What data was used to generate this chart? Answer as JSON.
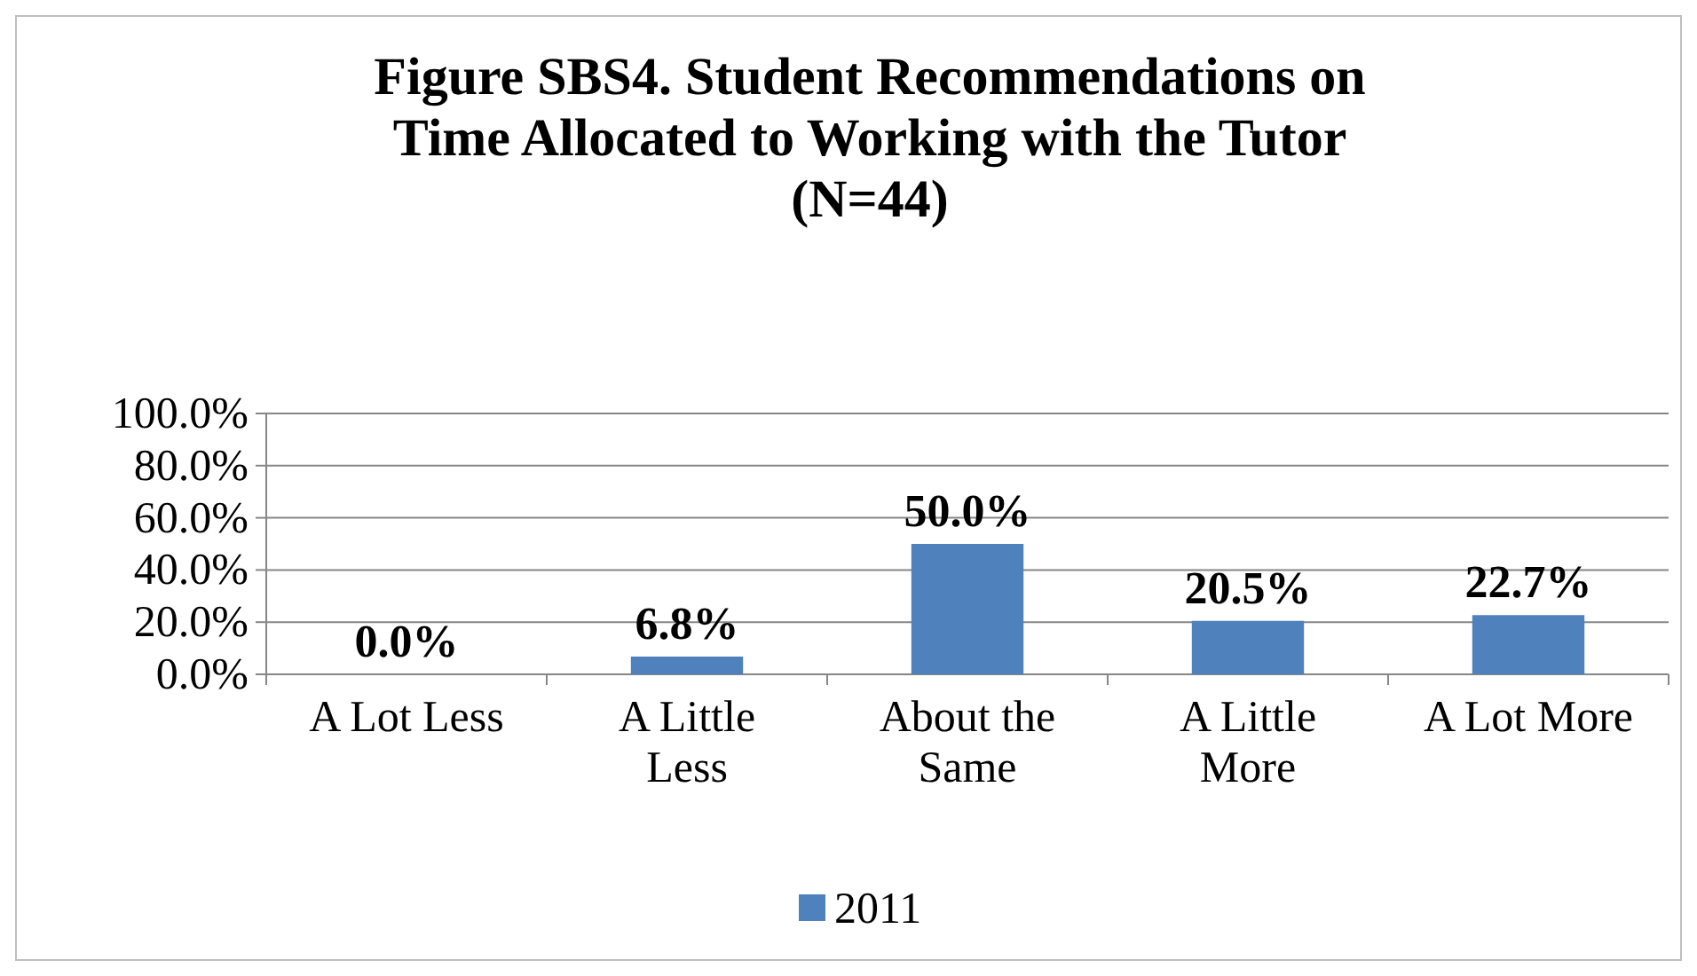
{
  "chart_data": {
    "type": "bar",
    "title": "Figure SBS4. Student Recommendations on Time Allocated to Working with the Tutor (N=44)",
    "categories": [
      "A Lot Less",
      "A Little Less",
      "About the Same",
      "A Little More",
      "A Lot More"
    ],
    "series": [
      {
        "name": "2011",
        "color": "#4f81bd",
        "values": [
          0,
          6.8,
          50,
          20.5,
          22.7
        ],
        "value_labels": [
          "0.0%",
          "6.8%",
          "50.0%",
          "20.5%",
          "22.7%"
        ]
      }
    ],
    "ylim": [
      0,
      100
    ],
    "yticks": [
      {
        "value": 0,
        "label": "0.0%"
      },
      {
        "value": 20,
        "label": "20.0%"
      },
      {
        "value": 40,
        "label": "40.0%"
      },
      {
        "value": 60,
        "label": "60.0%"
      },
      {
        "value": 80,
        "label": "80.0%"
      },
      {
        "value": 100,
        "label": "100.0%"
      }
    ],
    "grid": "y",
    "legend": "bottom"
  }
}
